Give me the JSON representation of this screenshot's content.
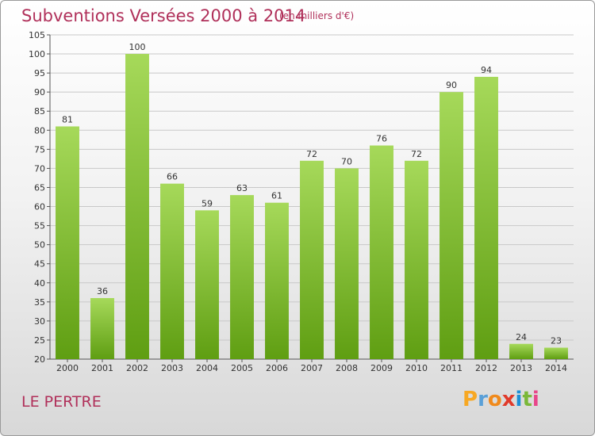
{
  "title": "Subventions Versées 2000 à 2014",
  "subtitle": "(en milliers d'€)",
  "commune": "LE PERTRE",
  "logo": {
    "letters": [
      "P",
      "r",
      "o",
      "x",
      "i",
      "t",
      "i"
    ],
    "colors": [
      "#f7a823",
      "#5aa0d8",
      "#f08a1c",
      "#e03a2a",
      "#1d8fd6",
      "#7ab83a",
      "#e8468a"
    ]
  },
  "colors": {
    "bar_light": "#a6d95a",
    "bar_dark": "#5f9e12",
    "grid": "#c8c8c8",
    "text_accent": "#b0305a"
  },
  "chart_data": {
    "type": "bar",
    "title": "Subventions Versées 2000 à 2014",
    "subtitle": "(en milliers d'€)",
    "xlabel": "",
    "ylabel": "",
    "categories": [
      "2000",
      "2001",
      "2002",
      "2003",
      "2004",
      "2005",
      "2006",
      "2007",
      "2008",
      "2009",
      "2010",
      "2011",
      "2012",
      "2013",
      "2014"
    ],
    "values": [
      81,
      36,
      100,
      66,
      59,
      63,
      61,
      72,
      70,
      76,
      72,
      90,
      94,
      24,
      23
    ],
    "ylim": [
      20,
      105
    ],
    "yticks": [
      20,
      25,
      30,
      35,
      40,
      45,
      50,
      55,
      60,
      65,
      70,
      75,
      80,
      85,
      90,
      95,
      100,
      105
    ],
    "grid": true,
    "legend": "none"
  }
}
